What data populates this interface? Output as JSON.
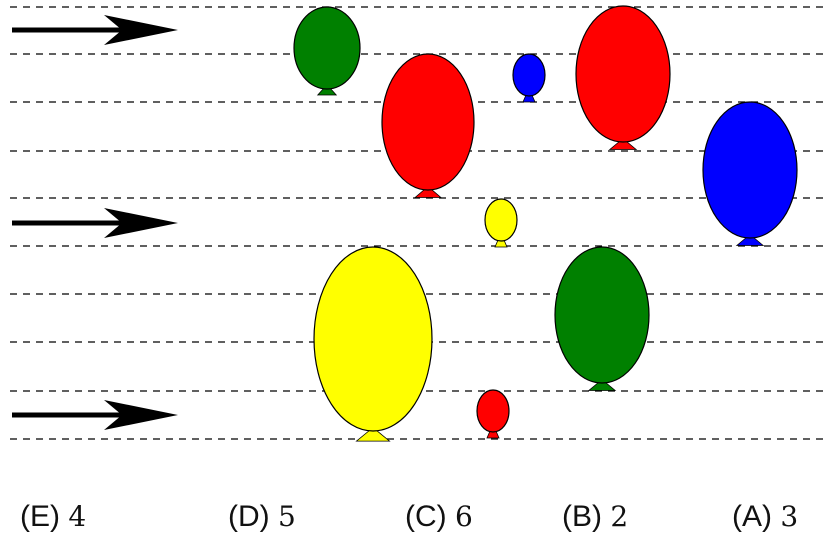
{
  "figure": {
    "guide_line_count": 10,
    "arrow_count": 3,
    "colors": {
      "line": "#000000",
      "green": "#008000",
      "red": "#ff0000",
      "blue": "#0000ff",
      "yellow": "#ffff00"
    },
    "balloons": [
      {
        "color": "green",
        "size": "medium"
      },
      {
        "color": "red",
        "size": "large"
      },
      {
        "color": "blue",
        "size": "small"
      },
      {
        "color": "red",
        "size": "large"
      },
      {
        "color": "blue",
        "size": "large"
      },
      {
        "color": "yellow",
        "size": "small"
      },
      {
        "color": "yellow",
        "size": "large"
      },
      {
        "color": "green",
        "size": "large"
      },
      {
        "color": "red",
        "size": "small"
      }
    ]
  },
  "choices": [
    {
      "letter": "(E)",
      "value": "4"
    },
    {
      "letter": "(D)",
      "value": "5"
    },
    {
      "letter": "(C)",
      "value": "6"
    },
    {
      "letter": "(B)",
      "value": "2"
    },
    {
      "letter": "(A)",
      "value": "3"
    }
  ]
}
